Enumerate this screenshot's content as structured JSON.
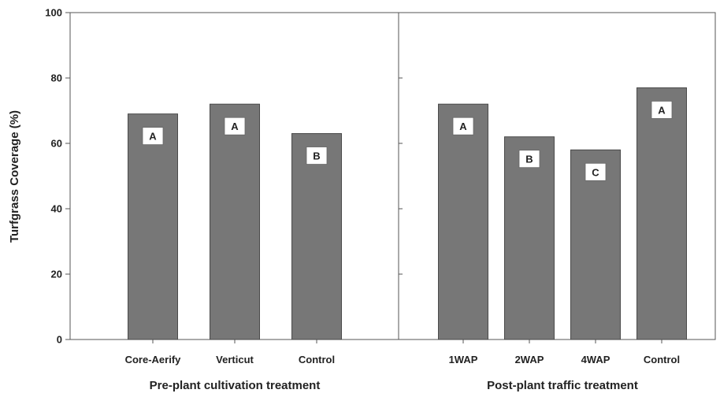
{
  "chart_data": {
    "type": "bar",
    "ylabel": "Turfgrass Coverage (%)",
    "ylim": [
      0,
      100
    ],
    "yticks": [
      0,
      20,
      40,
      60,
      80,
      100
    ],
    "grid": false,
    "legend": "none",
    "bar_color": "#777777",
    "panels": [
      {
        "xlabel": "Pre-plant cultivation treatment",
        "categories": [
          "Core-Aerify",
          "Verticut",
          "Control"
        ],
        "values": [
          69,
          72,
          63
        ],
        "letters": [
          "A",
          "A",
          "B"
        ]
      },
      {
        "xlabel": "Post-plant traffic treatment",
        "categories": [
          "1WAP",
          "2WAP",
          "4WAP",
          "Control"
        ],
        "values": [
          72,
          62,
          58,
          77
        ],
        "letters": [
          "A",
          "B",
          "C",
          "A"
        ]
      }
    ]
  }
}
